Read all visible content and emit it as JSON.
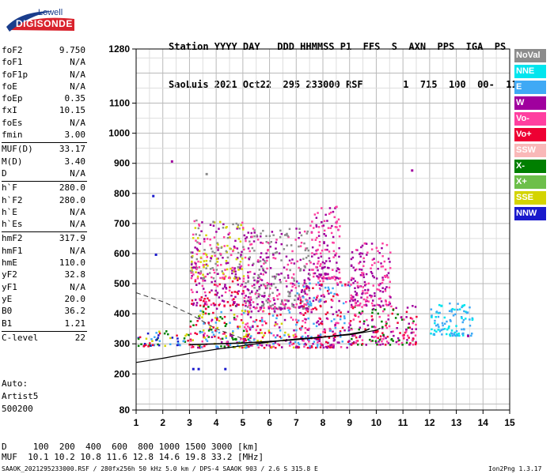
{
  "logo": {
    "top": "Lowell",
    "bottom": "DIGISONDE"
  },
  "header": {
    "line1": "Station YYYY DAY   DDD HHMMSS P1  FFS  S  AXN  PPS  IGA  PS",
    "line2": "SaoLuis 2021 Oct22  295 233000 RSF       1  715  100  00-  11"
  },
  "params": [
    {
      "k": "foF2",
      "v": "9.750"
    },
    {
      "k": "foF1",
      "v": "N/A"
    },
    {
      "k": "foF1p",
      "v": "N/A"
    },
    {
      "k": "foE",
      "v": "N/A"
    },
    {
      "k": "foEp",
      "v": "0.35"
    },
    {
      "k": "fxI",
      "v": "10.15"
    },
    {
      "k": "foEs",
      "v": "N/A"
    },
    {
      "k": "fmin",
      "v": "3.00"
    },
    {
      "k": "MUF(D)",
      "v": "33.17"
    },
    {
      "k": "M(D)",
      "v": "3.40"
    },
    {
      "k": "D",
      "v": "N/A"
    },
    {
      "k": "h`F",
      "v": "280.0"
    },
    {
      "k": "h`F2",
      "v": "280.0"
    },
    {
      "k": "h`E",
      "v": "N/A"
    },
    {
      "k": "h`Es",
      "v": "N/A"
    },
    {
      "k": "hmF2",
      "v": "317.9"
    },
    {
      "k": "hmF1",
      "v": "N/A"
    },
    {
      "k": "hmE",
      "v": "110.0"
    },
    {
      "k": "yF2",
      "v": "32.8"
    },
    {
      "k": "yF1",
      "v": "N/A"
    },
    {
      "k": "yE",
      "v": "20.0"
    },
    {
      "k": "B0",
      "v": "36.2"
    },
    {
      "k": "B1",
      "v": "1.21"
    },
    {
      "k": "C-level",
      "v": "22"
    }
  ],
  "auto": [
    "Auto:",
    "Artist5",
    "500200"
  ],
  "footer": {
    "d_row": "D     100  200  400  600  800 1000 1500 3000 [km]",
    "muf_row": "MUF  10.1 10.2 10.8 11.6 12.8 14.6 19.8 33.2 [MHz]",
    "file_info": "SAAOK_2021295233000.RSF / 280fx256h 50 kHz 5.0 km / DPS-4 SAAOK 903 / 2.6 S 315.8 E",
    "version": "Ion2Png 1.3.17"
  },
  "legend": [
    {
      "label": "NoVal",
      "color": "#8c8c8c"
    },
    {
      "label": "NNE",
      "color": "#00e5ee"
    },
    {
      "label": "E",
      "color": "#3fa9f5"
    },
    {
      "label": "W",
      "color": "#a0009e"
    },
    {
      "label": "Vo-",
      "color": "#ff3fa0"
    },
    {
      "label": "Vo+",
      "color": "#ee0033"
    },
    {
      "label": "SSW",
      "color": "#f9b8b8"
    },
    {
      "label": "X-",
      "color": "#007f00"
    },
    {
      "label": "X+",
      "color": "#6dbf4a"
    },
    {
      "label": "SSE",
      "color": "#d4d400"
    },
    {
      "label": "NNW",
      "color": "#1a1acc"
    }
  ],
  "chart_data": {
    "type": "scatter",
    "title": "",
    "xlabel": "",
    "ylabel": "",
    "xlim": [
      1,
      15
    ],
    "ylim": [
      80,
      1280
    ],
    "x_ticks": [
      1,
      2,
      3,
      4,
      5,
      6,
      7,
      8,
      9,
      10,
      11,
      12,
      13,
      14,
      15
    ],
    "y_ticks": [
      80,
      200,
      300,
      400,
      500,
      600,
      700,
      800,
      900,
      1000,
      1100,
      1280
    ],
    "grid": true,
    "trace_curve": [
      [
        3.0,
        297
      ],
      [
        4.0,
        300
      ],
      [
        5.0,
        303
      ],
      [
        6.0,
        308
      ],
      [
        7.0,
        314
      ],
      [
        8.0,
        322
      ],
      [
        9.0,
        332
      ],
      [
        9.5,
        340
      ],
      [
        9.75,
        350
      ]
    ],
    "profile_curve": [
      [
        1.0,
        238
      ],
      [
        2.0,
        252
      ],
      [
        3.0,
        268
      ],
      [
        4.0,
        282
      ],
      [
        5.0,
        294
      ],
      [
        6.0,
        306
      ],
      [
        7.0,
        316
      ],
      [
        8.0,
        323
      ],
      [
        9.0,
        330
      ],
      [
        10.0,
        345
      ],
      [
        10.15,
        352
      ]
    ],
    "dashed_curve": [
      [
        1.0,
        470
      ],
      [
        2.0,
        440
      ],
      [
        3.0,
        400
      ],
      [
        4.0,
        350
      ],
      [
        5.0,
        317
      ]
    ],
    "echo_clusters": [
      {
        "x": [
          1.0,
          3.0
        ],
        "y": [
          295,
          345
        ],
        "colors": [
          "#ee0033",
          "#1a1acc",
          "#3fa9f5",
          "#007f00",
          "#d4d400"
        ]
      },
      {
        "x": [
          3.0,
          5.3
        ],
        "y": [
          290,
          430
        ],
        "colors": [
          "#ff3fa0",
          "#a0009e",
          "#ee0033",
          "#007f00",
          "#d4d400",
          "#3fa9f5"
        ]
      },
      {
        "x": [
          3.0,
          5.0
        ],
        "y": [
          430,
          520
        ],
        "colors": [
          "#a0009e",
          "#ff3fa0",
          "#ee0033"
        ]
      },
      {
        "x": [
          3.0,
          5.0
        ],
        "y": [
          520,
          720
        ],
        "colors": [
          "#a0009e",
          "#8c8c8c",
          "#ff3fa0",
          "#d4d400"
        ]
      },
      {
        "x": [
          5.0,
          7.0
        ],
        "y": [
          290,
          420
        ],
        "colors": [
          "#ff3fa0",
          "#a0009e",
          "#d4d400",
          "#3fa9f5",
          "#ee0033"
        ]
      },
      {
        "x": [
          5.0,
          7.5
        ],
        "y": [
          420,
          690
        ],
        "colors": [
          "#a0009e",
          "#ff3fa0",
          "#8c8c8c"
        ]
      },
      {
        "x": [
          7.0,
          9.0
        ],
        "y": [
          290,
          520
        ],
        "colors": [
          "#ff3fa0",
          "#a0009e",
          "#3fa9f5",
          "#ee0033"
        ]
      },
      {
        "x": [
          7.5,
          8.6
        ],
        "y": [
          520,
          760
        ],
        "colors": [
          "#a0009e",
          "#ff3fa0"
        ]
      },
      {
        "x": [
          9.0,
          11.5
        ],
        "y": [
          300,
          430
        ],
        "colors": [
          "#ff3fa0",
          "#ee0033",
          "#a0009e",
          "#007f00"
        ]
      },
      {
        "x": [
          9.0,
          10.5
        ],
        "y": [
          430,
          640
        ],
        "colors": [
          "#ff3fa0",
          "#a0009e"
        ]
      },
      {
        "x": [
          12.0,
          13.6
        ],
        "y": [
          330,
          440
        ],
        "colors": [
          "#00e5ee",
          "#3fa9f5"
        ]
      }
    ],
    "isolated_points": [
      [
        1.6,
        795,
        "#1a1acc"
      ],
      [
        2.3,
        910,
        "#a0009e"
      ],
      [
        3.6,
        868,
        "#8c8c8c"
      ],
      [
        1.7,
        600,
        "#1a1acc"
      ],
      [
        3.1,
        220,
        "#1a1acc"
      ],
      [
        3.3,
        220,
        "#1a1acc"
      ],
      [
        4.3,
        220,
        "#1a1acc"
      ],
      [
        11.3,
        880,
        "#a0009e"
      ],
      [
        13.4,
        330,
        "#a0009e"
      ],
      [
        12.4,
        430,
        "#00e5ee"
      ],
      [
        13.2,
        430,
        "#00e5ee"
      ]
    ]
  }
}
